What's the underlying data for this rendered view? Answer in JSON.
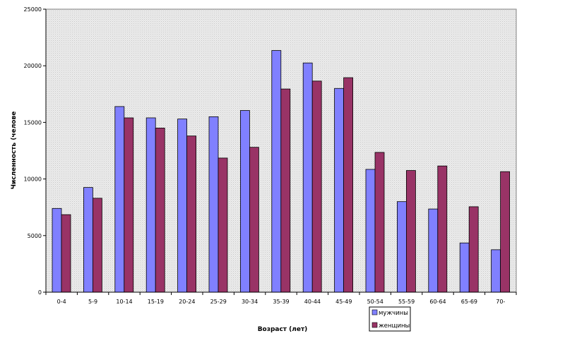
{
  "chart_data": {
    "type": "bar",
    "title": "",
    "xlabel": "Возраст (лет)",
    "ylabel": "Численность (челове",
    "ylim": [
      0,
      25000
    ],
    "y_ticks": [
      0,
      5000,
      10000,
      15000,
      20000,
      25000
    ],
    "y_tick_labels": [
      "0",
      "5000",
      "10000",
      "15000",
      "20000",
      "25000"
    ],
    "grid": false,
    "legend_position": "bottom-right",
    "categories": [
      "0-4",
      "5-9",
      "10-14",
      "15-19",
      "20-24",
      "25-29",
      "30-34",
      "35-39",
      "40-44",
      "45-49",
      "50-54",
      "55-59",
      "60-64",
      "65-69",
      "70-"
    ],
    "series": [
      {
        "name": "мужчины",
        "color": "#8080ff",
        "values": [
          7400,
          9250,
          16400,
          15400,
          15300,
          15500,
          16050,
          21350,
          20250,
          18000,
          10850,
          8000,
          7350,
          4350,
          3750
        ]
      },
      {
        "name": "женщины",
        "color": "#993366",
        "values": [
          6850,
          8300,
          15400,
          14500,
          13800,
          11850,
          12800,
          17950,
          18650,
          18950,
          12350,
          10750,
          11150,
          7550,
          10650
        ]
      }
    ],
    "colors": {
      "plot_background": "#e8e8e8",
      "plot_border": "#808080",
      "axis": "#000000",
      "bar_outline": "#000000"
    }
  }
}
